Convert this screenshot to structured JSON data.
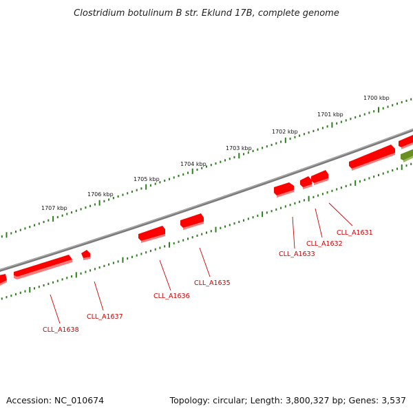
{
  "title": "Clostridium botulinum B str. Eklund 17B, complete genome",
  "footer": {
    "accession": "Accession: NC_010674",
    "topology": "Topology: circular; Length: 3,800,327 bp; Genes: 3,537"
  },
  "colors": {
    "backbone": "#7a7a7a",
    "tick": "#2e7d1e",
    "gene": "#ff0000",
    "gene_label": "#cc0000",
    "other_feature": "#6b8e23"
  },
  "kbp_labels": [
    "1700 kbp",
    "1701 kbp",
    "1702 kbp",
    "1703 kbp",
    "1704 kbp",
    "1705 kbp",
    "1706 kbp",
    "1707 kbp"
  ],
  "gene_labels": [
    "CLL_A1631",
    "CLL_A1632",
    "CLL_A1633",
    "CLL_A1635",
    "CLL_A1636",
    "CLL_A1637",
    "CLL_A1638"
  ]
}
